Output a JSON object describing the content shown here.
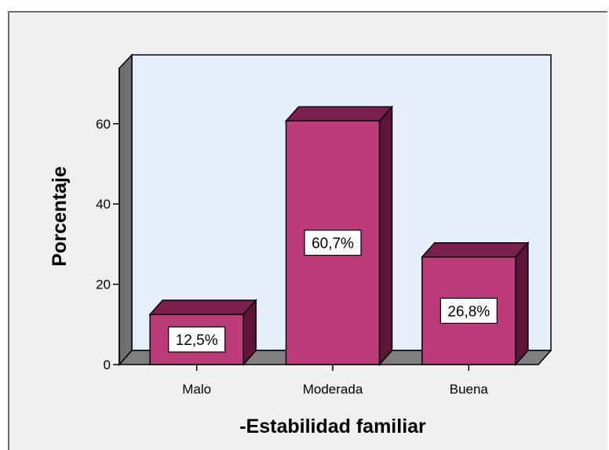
{
  "chart_data": {
    "type": "bar",
    "categories": [
      "Malo",
      "Moderada",
      "Buena"
    ],
    "values": [
      12.5,
      60.7,
      26.8
    ],
    "data_labels": [
      "12,5%",
      "60,7%",
      "26,8%"
    ],
    "xlabel": "-Estabilidad familiar",
    "ylabel": "Porcentaje",
    "ylim": [
      0,
      70
    ],
    "yticks": [
      0,
      20,
      40,
      60
    ],
    "ytick_labels": [
      "0",
      "20",
      "40",
      "60"
    ],
    "grid": false,
    "style": "3d",
    "colors": {
      "bar_front": "#bc3c7a",
      "bar_top": "#7b1f4e",
      "bar_side": "#5e1538",
      "plot_background": "#e6f0fb",
      "floor": "#7f7f7f",
      "wall_side": "#6f6f6f",
      "frame_background": "#f0f0f0"
    }
  }
}
